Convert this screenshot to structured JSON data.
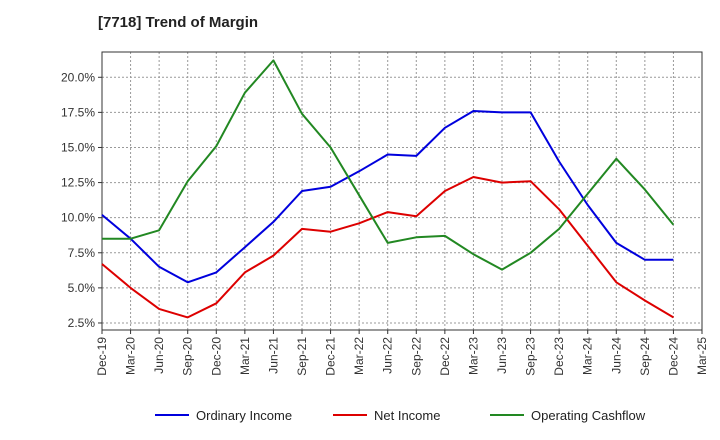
{
  "chart_data": {
    "type": "line",
    "title": "[7718]  Trend of Margin",
    "xlabel": "",
    "ylabel": "",
    "categories": [
      "Dec-19",
      "Mar-20",
      "Jun-20",
      "Sep-20",
      "Dec-20",
      "Mar-21",
      "Jun-21",
      "Sep-21",
      "Dec-21",
      "Mar-22",
      "Jun-22",
      "Sep-22",
      "Dec-22",
      "Mar-23",
      "Jun-23",
      "Sep-23",
      "Dec-23",
      "Mar-24",
      "Jun-24",
      "Sep-24",
      "Dec-24",
      "Mar-25"
    ],
    "ylim": [
      2.0,
      21.8
    ],
    "yticks": [
      2.5,
      5.0,
      7.5,
      10.0,
      12.5,
      15.0,
      17.5,
      20.0
    ],
    "ytick_labels": [
      "2.5%",
      "5.0%",
      "7.5%",
      "10.0%",
      "12.5%",
      "15.0%",
      "17.5%",
      "20.0%"
    ],
    "grid": true,
    "legend_position": "bottom",
    "series": [
      {
        "name": "Ordinary Income",
        "color": "#0000dd",
        "values": [
          10.2,
          8.5,
          6.5,
          5.4,
          6.1,
          7.9,
          9.7,
          11.9,
          12.2,
          13.3,
          14.5,
          14.4,
          16.4,
          17.6,
          17.5,
          17.5,
          14.0,
          10.9,
          8.2,
          7.0,
          7.0,
          null
        ]
      },
      {
        "name": "Net Income",
        "color": "#dd0000",
        "values": [
          6.7,
          5.0,
          3.5,
          2.9,
          3.9,
          6.1,
          7.3,
          9.2,
          9.0,
          9.6,
          10.4,
          10.1,
          11.9,
          12.9,
          12.5,
          12.6,
          10.6,
          8.0,
          5.4,
          4.1,
          2.9,
          null
        ]
      },
      {
        "name": "Operating Cashflow",
        "color": "#228822",
        "values": [
          8.5,
          8.5,
          9.1,
          12.6,
          15.1,
          18.9,
          21.2,
          17.4,
          15.0,
          11.6,
          8.2,
          8.6,
          8.7,
          7.4,
          6.3,
          7.5,
          9.2,
          11.7,
          14.2,
          12.0,
          9.5,
          null
        ]
      }
    ]
  }
}
